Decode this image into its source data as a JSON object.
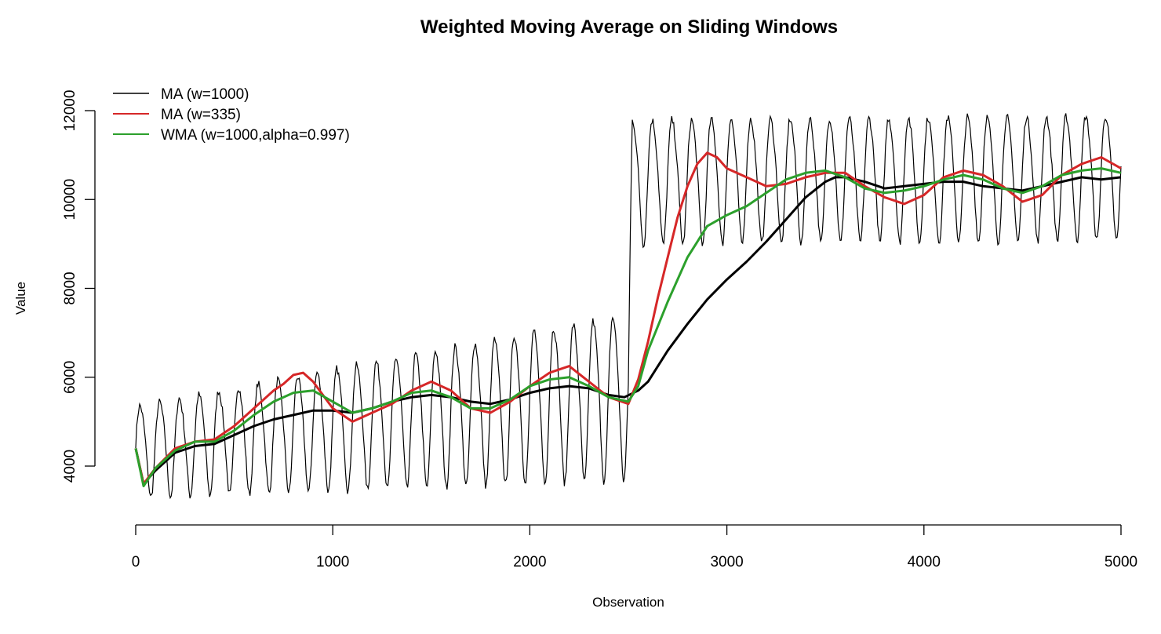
{
  "chart_data": {
    "type": "line",
    "title": "Weighted Moving Average on Sliding Windows",
    "xlabel": "Observation",
    "ylabel": "Value",
    "xlim": [
      0,
      5000
    ],
    "ylim": [
      3000,
      12500
    ],
    "x_ticks": [
      0,
      1000,
      2000,
      3000,
      4000,
      5000
    ],
    "y_ticks": [
      4000,
      6000,
      8000,
      10000,
      12000
    ],
    "grid": false,
    "legend_position": "top-left",
    "raw_signal": {
      "description_free": true,
      "x": [
        0,
        2500,
        2520,
        5000
      ],
      "baseline": [
        4400,
        5700,
        10500,
        10600
      ],
      "amplitude": [
        1100,
        2000,
        1500,
        1500
      ],
      "period": 100
    },
    "series": [
      {
        "name": "MA (w=1000)",
        "color": "#000000",
        "x": [
          0,
          40,
          100,
          200,
          300,
          400,
          500,
          600,
          700,
          800,
          900,
          1000,
          1100,
          1200,
          1300,
          1400,
          1500,
          1600,
          1700,
          1800,
          1900,
          2000,
          2100,
          2200,
          2300,
          2400,
          2480,
          2550,
          2600,
          2700,
          2800,
          2900,
          3000,
          3100,
          3200,
          3300,
          3400,
          3500,
          3550,
          3600,
          3700,
          3800,
          3900,
          4000,
          4100,
          4200,
          4300,
          4400,
          4500,
          4600,
          4700,
          4800,
          4900,
          5000
        ],
        "values": [
          4400,
          3600,
          3900,
          4300,
          4450,
          4500,
          4700,
          4900,
          5050,
          5150,
          5250,
          5250,
          5200,
          5300,
          5450,
          5550,
          5600,
          5550,
          5450,
          5400,
          5500,
          5650,
          5750,
          5800,
          5750,
          5600,
          5550,
          5700,
          5900,
          6600,
          7200,
          7750,
          8200,
          8600,
          9050,
          9550,
          10050,
          10400,
          10500,
          10500,
          10400,
          10250,
          10300,
          10350,
          10400,
          10400,
          10300,
          10250,
          10200,
          10300,
          10400,
          10500,
          10450,
          10500
        ]
      },
      {
        "name": "MA (w=335)",
        "color": "#d62728",
        "x": [
          0,
          40,
          100,
          200,
          300,
          400,
          500,
          600,
          700,
          750,
          800,
          850,
          900,
          950,
          1000,
          1100,
          1200,
          1300,
          1400,
          1500,
          1600,
          1700,
          1800,
          1900,
          2000,
          2100,
          2200,
          2300,
          2400,
          2500,
          2550,
          2600,
          2650,
          2700,
          2750,
          2800,
          2850,
          2900,
          2950,
          3000,
          3100,
          3200,
          3300,
          3400,
          3500,
          3600,
          3700,
          3800,
          3900,
          4000,
          4100,
          4200,
          4300,
          4400,
          4500,
          4600,
          4700,
          4800,
          4900,
          5000
        ],
        "values": [
          4400,
          3600,
          3950,
          4400,
          4550,
          4600,
          4900,
          5300,
          5700,
          5850,
          6050,
          6100,
          5900,
          5600,
          5300,
          5000,
          5200,
          5400,
          5700,
          5900,
          5700,
          5300,
          5200,
          5450,
          5800,
          6100,
          6250,
          5900,
          5550,
          5400,
          5950,
          6800,
          7800,
          8700,
          9600,
          10300,
          10800,
          11050,
          10950,
          10700,
          10500,
          10300,
          10350,
          10500,
          10600,
          10600,
          10300,
          10050,
          9900,
          10100,
          10500,
          10650,
          10550,
          10300,
          9950,
          10100,
          10550,
          10800,
          10950,
          10700
        ]
      },
      {
        "name": "WMA (w=1000,alpha=0.997)",
        "color": "#2ca02c",
        "x": [
          0,
          40,
          100,
          200,
          300,
          400,
          500,
          600,
          700,
          800,
          900,
          1000,
          1100,
          1200,
          1300,
          1400,
          1500,
          1600,
          1700,
          1800,
          1900,
          2000,
          2100,
          2200,
          2300,
          2400,
          2500,
          2550,
          2600,
          2700,
          2800,
          2900,
          3000,
          3100,
          3200,
          3300,
          3400,
          3500,
          3600,
          3700,
          3800,
          3900,
          4000,
          4100,
          4200,
          4300,
          4400,
          4500,
          4600,
          4700,
          4800,
          4900,
          5000
        ],
        "values": [
          4400,
          3550,
          3950,
          4350,
          4550,
          4550,
          4800,
          5150,
          5450,
          5650,
          5700,
          5450,
          5200,
          5300,
          5450,
          5650,
          5700,
          5550,
          5300,
          5300,
          5500,
          5800,
          5950,
          6000,
          5800,
          5550,
          5450,
          5800,
          6600,
          7700,
          8700,
          9400,
          9650,
          9850,
          10150,
          10450,
          10600,
          10650,
          10500,
          10250,
          10150,
          10200,
          10300,
          10450,
          10550,
          10450,
          10250,
          10150,
          10300,
          10550,
          10650,
          10700,
          10600
        ]
      }
    ]
  }
}
